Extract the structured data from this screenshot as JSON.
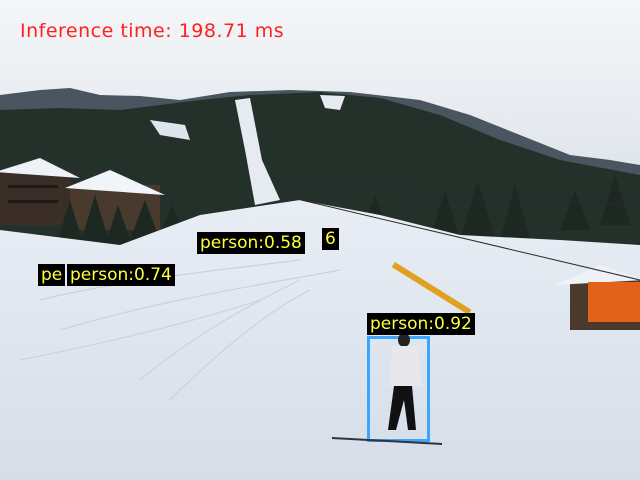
{
  "overlay": {
    "inference_text": "Inference time: 198.71 ms",
    "text_color": "#ff2020",
    "label_color": "#ffff3a",
    "box_color": "#3aa6ff"
  },
  "detections": [
    {
      "label": "person:0.92",
      "score": 0.92
    },
    {
      "label": "person:0.74",
      "score": 0.74
    },
    {
      "label": "pe",
      "score": null
    },
    {
      "label": "person:0.58",
      "score": 0.58
    },
    {
      "label": "6",
      "score": null
    }
  ]
}
